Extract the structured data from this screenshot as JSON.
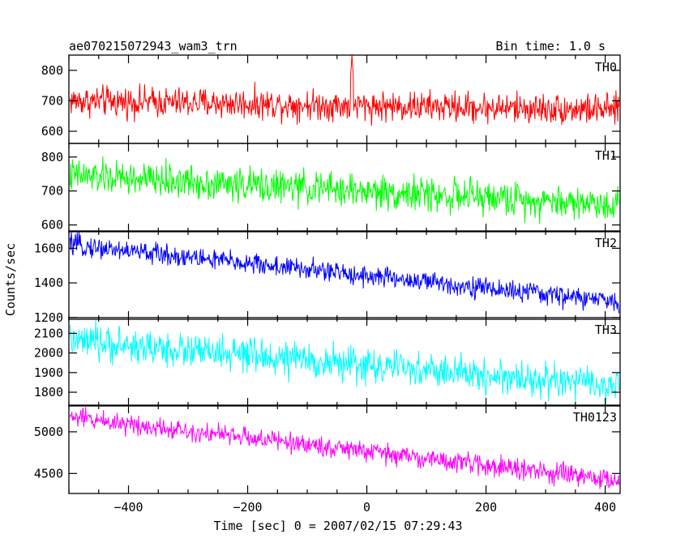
{
  "chart_data": {
    "type": "line",
    "title_left": "ae070215072943_wam3_trn",
    "title_right": "Bin time: 1.0 s",
    "xlabel": "Time [sec] 0 = 2007/02/15 07:29:43",
    "ylabel": "Counts/sec",
    "xlim": [
      -500,
      425
    ],
    "x_ticks": [
      -400,
      -200,
      0,
      200,
      400
    ],
    "grid": false,
    "panels": [
      {
        "name": "TH0",
        "color": "#ff0000",
        "ylim": [
          560,
          850
        ],
        "y_ticks": [
          600,
          700,
          800
        ],
        "start_level": 700,
        "end_level": 670,
        "noise_amplitude": 45,
        "spike": {
          "x": -25,
          "peak": 850
        }
      },
      {
        "name": "TH1",
        "color": "#00ff00",
        "ylim": [
          580,
          840
        ],
        "y_ticks": [
          600,
          700,
          800
        ],
        "start_level": 745,
        "end_level": 660,
        "noise_amplitude": 45
      },
      {
        "name": "TH2",
        "color": "#0000ff",
        "ylim": [
          1190,
          1700
        ],
        "y_ticks": [
          1200,
          1400,
          1600
        ],
        "start_level": 1620,
        "end_level": 1290,
        "noise_amplitude": 55
      },
      {
        "name": "TH3",
        "color": "#00ffff",
        "ylim": [
          1730,
          2180
        ],
        "y_ticks": [
          1800,
          1900,
          2000,
          2100
        ],
        "start_level": 2060,
        "end_level": 1830,
        "noise_amplitude": 80
      },
      {
        "name": "TH0123",
        "color": "#ff00ff",
        "ylim": [
          4260,
          5320
        ],
        "y_ticks": [
          4500,
          5000
        ],
        "start_level": 5180,
        "end_level": 4410,
        "noise_amplitude": 110
      }
    ]
  }
}
